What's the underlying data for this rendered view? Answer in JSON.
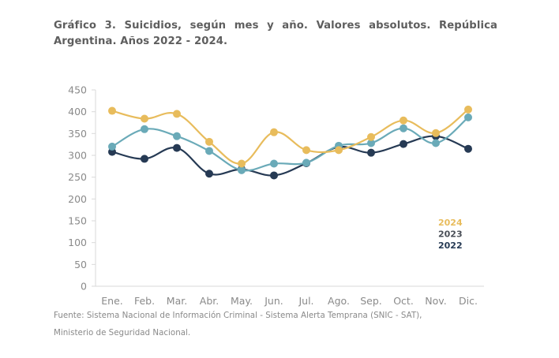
{
  "title": {
    "line1": "Gráfico 3. Suicidios, según mes y año. Valores absolutos. República",
    "line2": "Argentina. Años 2022 - 2024."
  },
  "source": {
    "line1": "Fuente: Sistema Nacional de Información Criminal - Sistema Alerta Temprana (SNIC - SAT),",
    "line2": "Ministerio de Seguridad Nacional."
  },
  "chart_data": {
    "type": "line",
    "title": "Gráfico 3. Suicidios, según mes y año. Valores absolutos. República Argentina. Años 2022 - 2024.",
    "xlabel": "",
    "ylabel": "",
    "categories": [
      "Ene.",
      "Feb.",
      "Mar.",
      "Abr.",
      "May.",
      "Jun.",
      "Jul.",
      "Ago.",
      "Sep.",
      "Oct.",
      "Nov.",
      "Dic."
    ],
    "ylim": [
      0,
      450
    ],
    "yticks": [
      0,
      50,
      100,
      150,
      200,
      250,
      300,
      350,
      400,
      450
    ],
    "grid": false,
    "legend_position": "bottom-right",
    "smooth": true,
    "series": [
      {
        "name": "2024",
        "color": "#e8bc5c",
        "legend_color": "#e8bc5c",
        "values": [
          402,
          384,
          395,
          331,
          281,
          353,
          312,
          312,
          342,
          380,
          351,
          405
        ]
      },
      {
        "name": "2023",
        "color": "#6aaab8",
        "legend_color": "#4a4f57",
        "values": [
          320,
          360,
          344,
          310,
          266,
          281,
          283,
          322,
          328,
          362,
          328,
          387
        ]
      },
      {
        "name": "2022",
        "color": "#263a54",
        "legend_color": "#263a54",
        "values": [
          308,
          292,
          317,
          258,
          268,
          254,
          282,
          319,
          306,
          326,
          344,
          315
        ]
      }
    ]
  }
}
